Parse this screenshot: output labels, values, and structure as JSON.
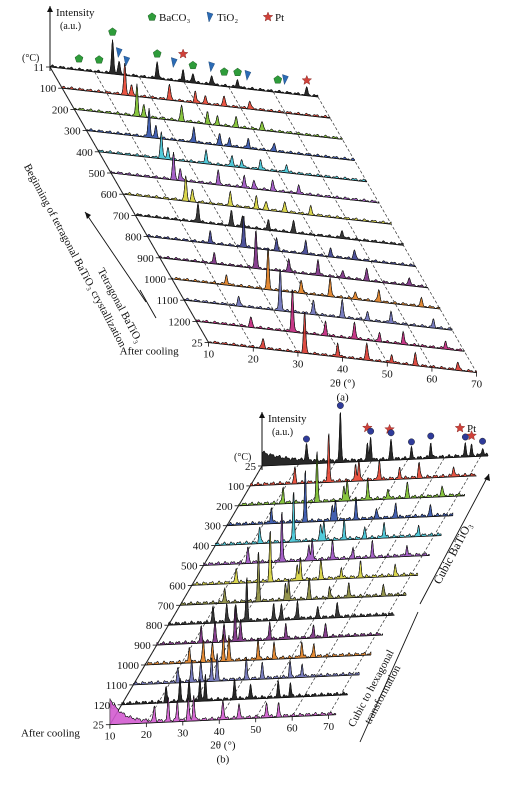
{
  "chart_data": [
    {
      "panel": "(a)",
      "type": "area",
      "y_axis_label": "Intensity",
      "y_axis_unit": "(a.u.)",
      "temp_axis_unit": "(°C)",
      "xlabel": "2θ (°)",
      "x_ticks": [
        "10",
        "20",
        "30",
        "40",
        "50",
        "60",
        "70"
      ],
      "xlim": [
        10,
        70
      ],
      "legend": [
        {
          "name": "BaCO₃",
          "marker": "pentagon",
          "color": "#2e9c3a"
        },
        {
          "name": "TiO₂",
          "marker": "flag",
          "color": "#2b6bb5"
        },
        {
          "name": "Pt",
          "marker": "star",
          "color": "#d0413a"
        }
      ],
      "annotations": [
        "Beginning of tetragonal BaTiO₃ crystallization",
        "Tetragonal BaTiO₃"
      ],
      "series": [
        {
          "label": "11",
          "color": "#111111",
          "peaks": [
            [
              24.0,
              0.9
            ],
            [
              25.5,
              0.35
            ],
            [
              34.0,
              0.45
            ],
            [
              39.8,
              0.3
            ],
            [
              42.0,
              0.25
            ],
            [
              46.2,
              0.25
            ],
            [
              52.0,
              0.2
            ],
            [
              67.5,
              0.18
            ]
          ]
        },
        {
          "label": "100",
          "color": "#e8432f",
          "peaks": [
            [
              24.0,
              0.8
            ],
            [
              25.5,
              0.3
            ],
            [
              34.0,
              0.4
            ],
            [
              39.8,
              0.3
            ],
            [
              42.0,
              0.2
            ],
            [
              46.2,
              0.25
            ],
            [
              52.0,
              0.2
            ]
          ]
        },
        {
          "label": "200",
          "color": "#7bbf2a",
          "peaks": [
            [
              24.0,
              0.8
            ],
            [
              25.5,
              0.3
            ],
            [
              34.0,
              0.4
            ],
            [
              39.8,
              0.3
            ],
            [
              42.0,
              0.2
            ],
            [
              46.2,
              0.25
            ],
            [
              52.0,
              0.2
            ]
          ]
        },
        {
          "label": "300",
          "color": "#2f4fa8",
          "peaks": [
            [
              24.0,
              0.75
            ],
            [
              25.5,
              0.3
            ],
            [
              34.0,
              0.4
            ],
            [
              39.8,
              0.3
            ],
            [
              42.0,
              0.2
            ],
            [
              46.2,
              0.25
            ],
            [
              52.0,
              0.2
            ]
          ]
        },
        {
          "label": "400",
          "color": "#3fc4d6",
          "peaks": [
            [
              24.0,
              0.7
            ],
            [
              25.5,
              0.3
            ],
            [
              34.0,
              0.35
            ],
            [
              39.8,
              0.3
            ],
            [
              42.0,
              0.2
            ],
            [
              46.2,
              0.25
            ],
            [
              52.0,
              0.2
            ]
          ]
        },
        {
          "label": "500",
          "color": "#9b4fc1",
          "peaks": [
            [
              24.0,
              0.7
            ],
            [
              25.5,
              0.3
            ],
            [
              34.0,
              0.35
            ],
            [
              39.8,
              0.3
            ],
            [
              42.0,
              0.2
            ],
            [
              46.2,
              0.25
            ],
            [
              52.0,
              0.2
            ]
          ]
        },
        {
          "label": "600",
          "color": "#d6d23a",
          "peaks": [
            [
              24.0,
              0.65
            ],
            [
              25.5,
              0.3
            ],
            [
              34.0,
              0.35
            ],
            [
              39.8,
              0.3
            ],
            [
              42.0,
              0.2
            ],
            [
              46.2,
              0.25
            ],
            [
              52.0,
              0.2
            ]
          ]
        },
        {
          "label": "700",
          "color": "#222222",
          "peaks": [
            [
              24.0,
              0.5
            ],
            [
              31.5,
              0.4
            ],
            [
              34.0,
              0.3
            ],
            [
              39.8,
              0.25
            ],
            [
              45.4,
              0.3
            ],
            [
              56.3,
              0.2
            ]
          ]
        },
        {
          "label": "800",
          "color": "#3b3f8f",
          "peaks": [
            [
              31.5,
              0.85
            ],
            [
              24.0,
              0.3
            ],
            [
              38.9,
              0.3
            ],
            [
              45.4,
              0.35
            ],
            [
              51.0,
              0.2
            ],
            [
              56.3,
              0.25
            ]
          ]
        },
        {
          "label": "900",
          "color": "#7a2b82",
          "peaks": [
            [
              31.5,
              1.0
            ],
            [
              22.2,
              0.25
            ],
            [
              38.9,
              0.35
            ],
            [
              45.4,
              0.4
            ],
            [
              51.0,
              0.2
            ],
            [
              56.3,
              0.3
            ],
            [
              65.8,
              0.2
            ]
          ]
        },
        {
          "label": "1000",
          "color": "#e07d1f",
          "peaks": [
            [
              31.5,
              1.05
            ],
            [
              22.2,
              0.25
            ],
            [
              38.9,
              0.35
            ],
            [
              45.4,
              0.45
            ],
            [
              51.0,
              0.2
            ],
            [
              56.3,
              0.3
            ],
            [
              65.8,
              0.2
            ]
          ]
        },
        {
          "label": "1100",
          "color": "#6a6fb8",
          "peaks": [
            [
              31.5,
              1.1
            ],
            [
              22.2,
              0.25
            ],
            [
              38.9,
              0.35
            ],
            [
              45.4,
              0.45
            ],
            [
              51.0,
              0.2
            ],
            [
              56.3,
              0.3
            ],
            [
              65.8,
              0.2
            ]
          ]
        },
        {
          "label": "1200",
          "color": "#c0227a",
          "peaks": [
            [
              31.5,
              1.15
            ],
            [
              22.2,
              0.25
            ],
            [
              38.9,
              0.35
            ],
            [
              45.4,
              0.45
            ],
            [
              51.0,
              0.2
            ],
            [
              56.3,
              0.3
            ],
            [
              65.8,
              0.2
            ]
          ]
        },
        {
          "label": "25",
          "side_label": "After cooling",
          "color": "#d9392f",
          "peaks": [
            [
              31.5,
              1.1
            ],
            [
              22.2,
              0.25
            ],
            [
              38.9,
              0.35
            ],
            [
              45.4,
              0.45
            ],
            [
              51.0,
              0.2
            ],
            [
              56.3,
              0.3
            ],
            [
              65.8,
              0.2
            ]
          ]
        }
      ]
    },
    {
      "panel": "(b)",
      "type": "area",
      "y_axis_label": "Intensity",
      "y_axis_unit": "(a.u.)",
      "temp_axis_unit": "(°C)",
      "xlabel": "2θ (°)",
      "x_ticks": [
        "10",
        "20",
        "30",
        "40",
        "50",
        "60",
        "70"
      ],
      "xlim": [
        10,
        72
      ],
      "legend": [
        {
          "name": "Pt",
          "marker": "star",
          "color": "#d0413a"
        }
      ],
      "annotations": [
        "Cubic BaTiO₃",
        "Cubic to hexagonal transformation"
      ],
      "series": [
        {
          "label": "25",
          "color": "#111111",
          "peaks": [
            [
              22.2,
              0.35
            ],
            [
              31.5,
              1.0
            ],
            [
              38.9,
              0.3
            ],
            [
              39.8,
              0.45
            ],
            [
              45.4,
              0.4
            ],
            [
              51.0,
              0.2
            ],
            [
              56.3,
              0.3
            ],
            [
              65.8,
              0.25
            ],
            [
              67.5,
              0.2
            ],
            [
              70.5,
              0.15
            ]
          ]
        },
        {
          "label": "100",
          "color": "#e8432f",
          "peaks": [
            [
              22.2,
              0.3
            ],
            [
              31.5,
              1.0
            ],
            [
              38.9,
              0.3
            ],
            [
              39.8,
              0.4
            ],
            [
              45.4,
              0.4
            ],
            [
              51.0,
              0.2
            ],
            [
              56.3,
              0.3
            ],
            [
              65.8,
              0.2
            ]
          ]
        },
        {
          "label": "200",
          "color": "#7bbf2a",
          "peaks": [
            [
              22.2,
              0.3
            ],
            [
              31.5,
              1.0
            ],
            [
              38.9,
              0.3
            ],
            [
              39.8,
              0.4
            ],
            [
              45.4,
              0.4
            ],
            [
              51.0,
              0.2
            ],
            [
              56.3,
              0.3
            ],
            [
              65.8,
              0.2
            ]
          ]
        },
        {
          "label": "300",
          "color": "#2f4fa8",
          "peaks": [
            [
              22.2,
              0.3
            ],
            [
              31.5,
              1.0
            ],
            [
              38.9,
              0.3
            ],
            [
              39.8,
              0.4
            ],
            [
              45.4,
              0.4
            ],
            [
              51.0,
              0.2
            ],
            [
              56.3,
              0.3
            ],
            [
              65.8,
              0.2
            ]
          ]
        },
        {
          "label": "400",
          "color": "#3fc4d6",
          "peaks": [
            [
              22.2,
              0.3
            ],
            [
              31.5,
              1.0
            ],
            [
              38.9,
              0.3
            ],
            [
              39.8,
              0.4
            ],
            [
              45.4,
              0.4
            ],
            [
              51.0,
              0.2
            ],
            [
              56.3,
              0.3
            ],
            [
              65.8,
              0.2
            ]
          ]
        },
        {
          "label": "500",
          "color": "#9b4fc1",
          "peaks": [
            [
              22.2,
              0.3
            ],
            [
              31.5,
              1.0
            ],
            [
              38.9,
              0.3
            ],
            [
              39.8,
              0.4
            ],
            [
              45.4,
              0.4
            ],
            [
              51.0,
              0.2
            ],
            [
              56.3,
              0.3
            ],
            [
              65.8,
              0.2
            ]
          ]
        },
        {
          "label": "600",
          "color": "#d6d23a",
          "peaks": [
            [
              22.2,
              0.3
            ],
            [
              31.5,
              1.0
            ],
            [
              38.9,
              0.3
            ],
            [
              39.8,
              0.4
            ],
            [
              45.4,
              0.4
            ],
            [
              51.0,
              0.2
            ],
            [
              56.3,
              0.3
            ],
            [
              65.8,
              0.2
            ]
          ]
        },
        {
          "label": "700",
          "color": "#8a8a3a",
          "peaks": [
            [
              22.2,
              0.3
            ],
            [
              31.5,
              1.0
            ],
            [
              38.9,
              0.3
            ],
            [
              39.8,
              0.4
            ],
            [
              45.4,
              0.4
            ],
            [
              51.0,
              0.2
            ],
            [
              56.3,
              0.3
            ],
            [
              65.8,
              0.2
            ]
          ]
        },
        {
          "label": "800",
          "color": "#222222",
          "peaks": [
            [
              22.2,
              0.3
            ],
            [
              26.0,
              0.35
            ],
            [
              28.5,
              0.3
            ],
            [
              31.5,
              0.9
            ],
            [
              38.9,
              0.3
            ],
            [
              41.0,
              0.3
            ],
            [
              45.4,
              0.35
            ],
            [
              51.0,
              0.2
            ],
            [
              56.3,
              0.3
            ]
          ]
        },
        {
          "label": "900",
          "color": "#7a2b82",
          "peaks": [
            [
              22.2,
              0.3
            ],
            [
              26.0,
              0.4
            ],
            [
              28.5,
              0.35
            ],
            [
              31.5,
              0.7
            ],
            [
              33.0,
              0.45
            ],
            [
              41.0,
              0.35
            ],
            [
              45.4,
              0.3
            ],
            [
              53.0,
              0.25
            ],
            [
              56.3,
              0.25
            ]
          ]
        },
        {
          "label": "1000",
          "color": "#e07d1f",
          "peaks": [
            [
              22.2,
              0.3
            ],
            [
              26.0,
              0.45
            ],
            [
              28.5,
              0.4
            ],
            [
              31.5,
              0.5
            ],
            [
              33.0,
              0.5
            ],
            [
              41.0,
              0.4
            ],
            [
              45.4,
              0.3
            ],
            [
              53.0,
              0.3
            ],
            [
              56.3,
              0.25
            ]
          ]
        },
        {
          "label": "1100",
          "color": "#6a6fb8",
          "peaks": [
            [
              22.2,
              0.3
            ],
            [
              26.0,
              0.45
            ],
            [
              28.5,
              0.4
            ],
            [
              31.5,
              0.45
            ],
            [
              33.0,
              0.5
            ],
            [
              41.0,
              0.4
            ],
            [
              45.4,
              0.3
            ],
            [
              53.0,
              0.3
            ],
            [
              56.3,
              0.25
            ]
          ]
        },
        {
          "label": "1200",
          "color": "#111111",
          "peaks": [
            [
              22.2,
              0.3
            ],
            [
              26.0,
              0.45
            ],
            [
              28.5,
              0.4
            ],
            [
              31.5,
              0.45
            ],
            [
              33.0,
              0.5
            ],
            [
              41.0,
              0.4
            ],
            [
              45.4,
              0.3
            ],
            [
              53.0,
              0.3
            ],
            [
              56.3,
              0.25
            ]
          ]
        },
        {
          "label": "25",
          "side_label": "After cooling",
          "color": "#d35bd0",
          "peaks": [
            [
              22.2,
              0.3
            ],
            [
              26.0,
              0.45
            ],
            [
              28.5,
              0.4
            ],
            [
              31.5,
              0.45
            ],
            [
              33.0,
              0.5
            ],
            [
              41.0,
              0.4
            ],
            [
              45.4,
              0.3
            ],
            [
              53.0,
              0.3
            ],
            [
              56.3,
              0.25
            ]
          ]
        }
      ]
    }
  ]
}
